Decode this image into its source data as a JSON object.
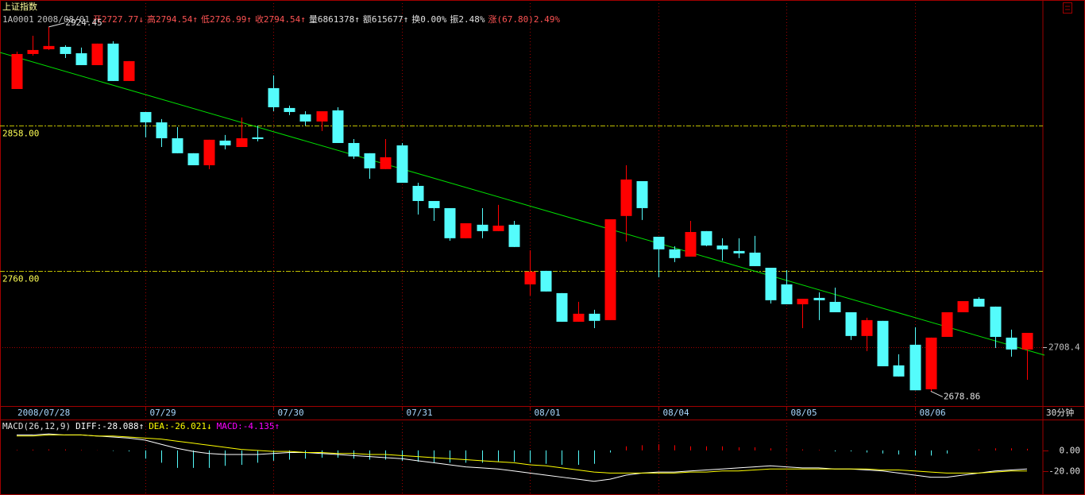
{
  "chart_data": [
    {
      "type": "candlestick",
      "title": "上证指数",
      "info": [
        {
          "text": "1A0001",
          "color": "#c0c0c0"
        },
        {
          "text": "2008/08/01",
          "color": "#c0c0c0"
        },
        {
          "text": "开2727.77↓",
          "color": "#ff5454"
        },
        {
          "text": "高2794.54↑",
          "color": "#ff5454"
        },
        {
          "text": "低2726.99↑",
          "color": "#ff5454"
        },
        {
          "text": "收2794.54↑",
          "color": "#ff5454"
        },
        {
          "text": "量6861378↑",
          "color": "#e0e0e0"
        },
        {
          "text": "额615677↑",
          "color": "#e0e0e0"
        },
        {
          "text": "换0.00%",
          "color": "#e0e0e0"
        },
        {
          "text": "振2.48%",
          "color": "#e0e0e0"
        },
        {
          "text": "涨(67.80)2.49%",
          "color": "#ff5454"
        }
      ],
      "period": "30分钟",
      "categories": [
        "2008/07/28",
        null,
        null,
        null,
        null,
        null,
        null,
        null,
        "07/29",
        null,
        null,
        null,
        null,
        null,
        null,
        null,
        "07/30",
        null,
        null,
        null,
        null,
        null,
        null,
        null,
        "07/31",
        null,
        null,
        null,
        null,
        null,
        null,
        null,
        "08/01",
        null,
        null,
        null,
        null,
        null,
        null,
        null,
        "08/04",
        null,
        null,
        null,
        null,
        null,
        null,
        null,
        "08/05",
        null,
        null,
        null,
        null,
        null,
        null,
        null,
        "08/06",
        null,
        null,
        null,
        null,
        null,
        null,
        null
      ],
      "open": [
        2882.6,
        2906.2,
        2909.4,
        2911.0,
        2906.7,
        2898.7,
        2913.2,
        2888.0,
        2867.1,
        2860.1,
        2849.4,
        2839.3,
        2831.2,
        2847.8,
        2843.5,
        2850.0,
        2883.2,
        2869.8,
        2865.5,
        2860.7,
        2868.2,
        2846.2,
        2839.3,
        2828.6,
        2844.6,
        2817.3,
        2807.1,
        2802.3,
        2782.0,
        2791.1,
        2786.8,
        2791.1,
        2750.9,
        2760.0,
        2745.0,
        2725.7,
        2731.1,
        2726.8,
        2797.0,
        2820.5,
        2783.0,
        2774.5,
        2769.6,
        2786.8,
        2777.1,
        2773.4,
        2772.3,
        2762.1,
        2750.9,
        2737.5,
        2741.8,
        2739.1,
        2732.1,
        2716.1,
        2726.3,
        2696.3,
        2710.2,
        2680.2,
        2715.5,
        2732.1,
        2741.2,
        2735.9,
        2715.0,
        2707.0
      ],
      "high": [
        2907.8,
        2918.5,
        2924.45,
        2912.1,
        2910.5,
        2913.2,
        2914.8,
        2901.4,
        2867.1,
        2862.3,
        2856.9,
        2839.3,
        2848.4,
        2851.6,
        2863.4,
        2858.0,
        2891.7,
        2871.4,
        2867.6,
        2867.6,
        2870.3,
        2848.9,
        2839.3,
        2848.9,
        2846.2,
        2819.4,
        2807.1,
        2802.3,
        2792.1,
        2802.3,
        2804.5,
        2793.7,
        2773.9,
        2760.0,
        2745.0,
        2739.1,
        2733.8,
        2794.8,
        2831.2,
        2820.5,
        2783.0,
        2776.6,
        2793.7,
        2786.8,
        2782.0,
        2782.0,
        2783.6,
        2762.1,
        2760.5,
        2741.2,
        2745.5,
        2748.7,
        2732.1,
        2728.4,
        2726.3,
        2703.8,
        2722.0,
        2715.0,
        2732.1,
        2739.6,
        2742.3,
        2735.9,
        2720.4,
        2718.2
      ],
      "low": [
        2882.6,
        2905.1,
        2908.9,
        2903.5,
        2898.7,
        2898.7,
        2888.0,
        2888.0,
        2850.0,
        2843.5,
        2839.3,
        2831.2,
        2828.6,
        2841.9,
        2843.5,
        2847.3,
        2867.6,
        2865.0,
        2858.0,
        2854.3,
        2846.2,
        2835.5,
        2822.1,
        2828.6,
        2819.4,
        2798.0,
        2793.7,
        2780.3,
        2782.0,
        2782.0,
        2786.8,
        2776.1,
        2743.4,
        2746.1,
        2725.7,
        2725.7,
        2721.4,
        2726.8,
        2779.8,
        2794.3,
        2755.7,
        2765.9,
        2769.6,
        2776.6,
        2767.0,
        2768.6,
        2763.2,
        2738.0,
        2737.5,
        2721.4,
        2726.8,
        2732.1,
        2713.4,
        2705.9,
        2695.7,
        2688.8,
        2679.5,
        2678.86,
        2715.5,
        2732.1,
        2735.9,
        2708.0,
        2702.2,
        2686.6
      ],
      "close": [
        2906.2,
        2908.9,
        2911.6,
        2906.2,
        2898.7,
        2913.2,
        2888.0,
        2901.4,
        2860.1,
        2849.4,
        2839.3,
        2831.2,
        2848.4,
        2844.6,
        2849.4,
        2848.9,
        2870.3,
        2867.1,
        2860.7,
        2867.6,
        2846.2,
        2837.1,
        2829.1,
        2836.6,
        2819.4,
        2807.1,
        2802.3,
        2782.0,
        2792.1,
        2786.8,
        2790.5,
        2776.1,
        2759.5,
        2746.1,
        2725.7,
        2731.1,
        2726.3,
        2794.8,
        2821.6,
        2802.3,
        2774.5,
        2768.6,
        2786.2,
        2777.1,
        2774.5,
        2771.8,
        2763.2,
        2740.2,
        2737.5,
        2741.2,
        2740.2,
        2732.1,
        2716.1,
        2726.8,
        2695.7,
        2688.8,
        2679.5,
        2715.0,
        2732.1,
        2739.6,
        2735.9,
        2715.5,
        2707.0,
        2718.2
      ],
      "up_color": "#ff0000",
      "down_color": "#54fcfc",
      "ylim": [
        2668.9,
        2942.6
      ],
      "yticks": [
        {
          "value": 2858,
          "label": "2858.00"
        },
        {
          "value": 2760,
          "label": "2760.00"
        }
      ],
      "last_price": 2708.4,
      "high_label": 2924.45,
      "low_label": 2678.86
    },
    {
      "type": "macd",
      "title": "MACD(26,12,9)",
      "legend": [
        {
          "text": "DIFF:-28.088↑",
          "color": "#ffffff"
        },
        {
          "text": "DEA:-26.021↓",
          "color": "#ffff00"
        },
        {
          "text": "MACD:-4.135↑",
          "color": "#ff00ff"
        }
      ],
      "series": [
        {
          "color": "#ffffff",
          "values": [
            15,
            15,
            16,
            15,
            15,
            14,
            13,
            12,
            10,
            6,
            2,
            -1,
            -3,
            -4,
            -4,
            -4,
            -3,
            -2,
            -2,
            -3,
            -4,
            -5,
            -6,
            -7,
            -8,
            -10,
            -12,
            -14,
            -16,
            -17,
            -18,
            -20,
            -22,
            -24,
            -26,
            -28,
            -30,
            -28,
            -24,
            -22,
            -21,
            -21,
            -20,
            -19,
            -18,
            -17,
            -16,
            -15,
            -16,
            -17,
            -17,
            -18,
            -18,
            -19,
            -20,
            -22,
            -24,
            -26,
            -26,
            -24,
            -22,
            -20,
            -19,
            -18
          ]
        },
        {
          "color": "#ffff00",
          "values": [
            14,
            14,
            15,
            15,
            15,
            14,
            14,
            13,
            12,
            11,
            9,
            7,
            5,
            3,
            1,
            0,
            -1,
            -1,
            -2,
            -2,
            -3,
            -3,
            -4,
            -4,
            -5,
            -6,
            -7,
            -8,
            -9,
            -10,
            -11,
            -12,
            -14,
            -15,
            -17,
            -19,
            -21,
            -22,
            -22,
            -22,
            -22,
            -22,
            -21,
            -21,
            -20,
            -20,
            -19,
            -18,
            -18,
            -18,
            -18,
            -18,
            -18,
            -18,
            -19,
            -19,
            -20,
            -21,
            -22,
            -22,
            -22,
            -21,
            -20,
            -20
          ]
        }
      ],
      "histogram": [
        0.5,
        0.8,
        1,
        1,
        0.5,
        0.2,
        -0.5,
        -1,
        -8,
        -12,
        -17,
        -17,
        -17,
        -15,
        -14,
        -12,
        -10,
        -9,
        -8,
        -7,
        -7,
        -8,
        -9,
        -9,
        -10,
        -11,
        -12,
        -12,
        -12,
        -12,
        -11,
        -11,
        -12,
        -13,
        -14,
        -14,
        -13,
        -2,
        4,
        5,
        6,
        5,
        4,
        4,
        4,
        3,
        3,
        2,
        1,
        1,
        0.5,
        -1,
        -1,
        -2,
        -3,
        -4,
        -5,
        -5,
        -3,
        0,
        1,
        2,
        2,
        1.5
      ],
      "up_color": "#ff0000",
      "down_color": "#54fcfc",
      "ylim": [
        -41,
        30
      ],
      "yticks": [
        {
          "value": 0,
          "label": "0.00"
        },
        {
          "value": -20,
          "label": "-20.00"
        }
      ]
    }
  ]
}
